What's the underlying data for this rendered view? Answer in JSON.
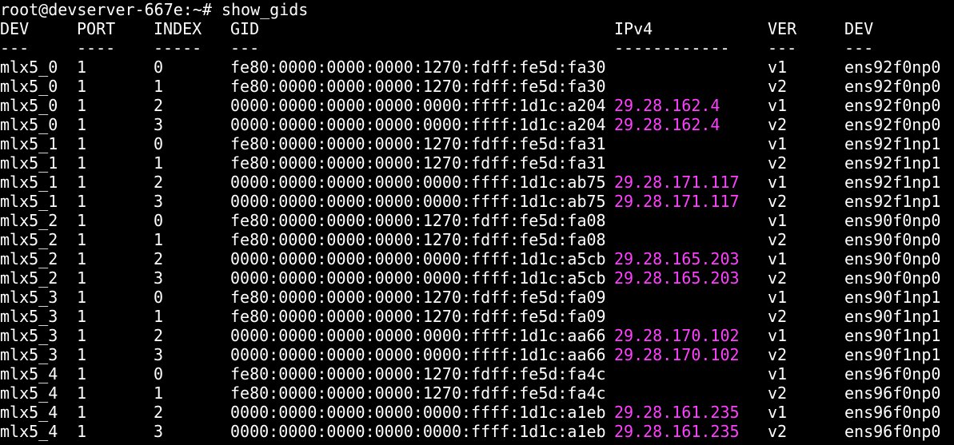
{
  "terminal": {
    "prompt": "root@devserver-667e:~# ",
    "command": "show_gids",
    "colors": {
      "background": "#000000",
      "text": "#ffffff",
      "ipv4": "#ff40ff"
    },
    "headers": [
      "DEV",
      "PORT",
      "INDEX",
      "GID",
      "IPv4",
      "VER",
      "DEV"
    ],
    "separators": [
      "---",
      "----",
      "-----",
      "---",
      "------------",
      "---",
      "---"
    ],
    "rows": [
      [
        "mlx5_0",
        "1",
        "0",
        "fe80:0000:0000:0000:1270:fdff:fe5d:fa30",
        "",
        "v1",
        "ens92f0np0"
      ],
      [
        "mlx5_0",
        "1",
        "1",
        "fe80:0000:0000:0000:1270:fdff:fe5d:fa30",
        "",
        "v2",
        "ens92f0np0"
      ],
      [
        "mlx5_0",
        "1",
        "2",
        "0000:0000:0000:0000:0000:ffff:1d1c:a204",
        "29.28.162.4",
        "v1",
        "ens92f0np0"
      ],
      [
        "mlx5_0",
        "1",
        "3",
        "0000:0000:0000:0000:0000:ffff:1d1c:a204",
        "29.28.162.4",
        "v2",
        "ens92f0np0"
      ],
      [
        "mlx5_1",
        "1",
        "0",
        "fe80:0000:0000:0000:1270:fdff:fe5d:fa31",
        "",
        "v1",
        "ens92f1np1"
      ],
      [
        "mlx5_1",
        "1",
        "1",
        "fe80:0000:0000:0000:1270:fdff:fe5d:fa31",
        "",
        "v2",
        "ens92f1np1"
      ],
      [
        "mlx5_1",
        "1",
        "2",
        "0000:0000:0000:0000:0000:ffff:1d1c:ab75",
        "29.28.171.117",
        "v1",
        "ens92f1np1"
      ],
      [
        "mlx5_1",
        "1",
        "3",
        "0000:0000:0000:0000:0000:ffff:1d1c:ab75",
        "29.28.171.117",
        "v2",
        "ens92f1np1"
      ],
      [
        "mlx5_2",
        "1",
        "0",
        "fe80:0000:0000:0000:1270:fdff:fe5d:fa08",
        "",
        "v1",
        "ens90f0np0"
      ],
      [
        "mlx5_2",
        "1",
        "1",
        "fe80:0000:0000:0000:1270:fdff:fe5d:fa08",
        "",
        "v2",
        "ens90f0np0"
      ],
      [
        "mlx5_2",
        "1",
        "2",
        "0000:0000:0000:0000:0000:ffff:1d1c:a5cb",
        "29.28.165.203",
        "v1",
        "ens90f0np0"
      ],
      [
        "mlx5_2",
        "1",
        "3",
        "0000:0000:0000:0000:0000:ffff:1d1c:a5cb",
        "29.28.165.203",
        "v2",
        "ens90f0np0"
      ],
      [
        "mlx5_3",
        "1",
        "0",
        "fe80:0000:0000:0000:1270:fdff:fe5d:fa09",
        "",
        "v1",
        "ens90f1np1"
      ],
      [
        "mlx5_3",
        "1",
        "1",
        "fe80:0000:0000:0000:1270:fdff:fe5d:fa09",
        "",
        "v2",
        "ens90f1np1"
      ],
      [
        "mlx5_3",
        "1",
        "2",
        "0000:0000:0000:0000:0000:ffff:1d1c:aa66",
        "29.28.170.102",
        "v1",
        "ens90f1np1"
      ],
      [
        "mlx5_3",
        "1",
        "3",
        "0000:0000:0000:0000:0000:ffff:1d1c:aa66",
        "29.28.170.102",
        "v2",
        "ens90f1np1"
      ],
      [
        "mlx5_4",
        "1",
        "0",
        "fe80:0000:0000:0000:1270:fdff:fe5d:fa4c",
        "",
        "v1",
        "ens96f0np0"
      ],
      [
        "mlx5_4",
        "1",
        "1",
        "fe80:0000:0000:0000:1270:fdff:fe5d:fa4c",
        "",
        "v2",
        "ens96f0np0"
      ],
      [
        "mlx5_4",
        "1",
        "2",
        "0000:0000:0000:0000:0000:ffff:1d1c:a1eb",
        "29.28.161.235",
        "v1",
        "ens96f0np0"
      ],
      [
        "mlx5_4",
        "1",
        "3",
        "0000:0000:0000:0000:0000:ffff:1d1c:a1eb",
        "29.28.161.235",
        "v2",
        "ens96f0np0"
      ]
    ]
  }
}
